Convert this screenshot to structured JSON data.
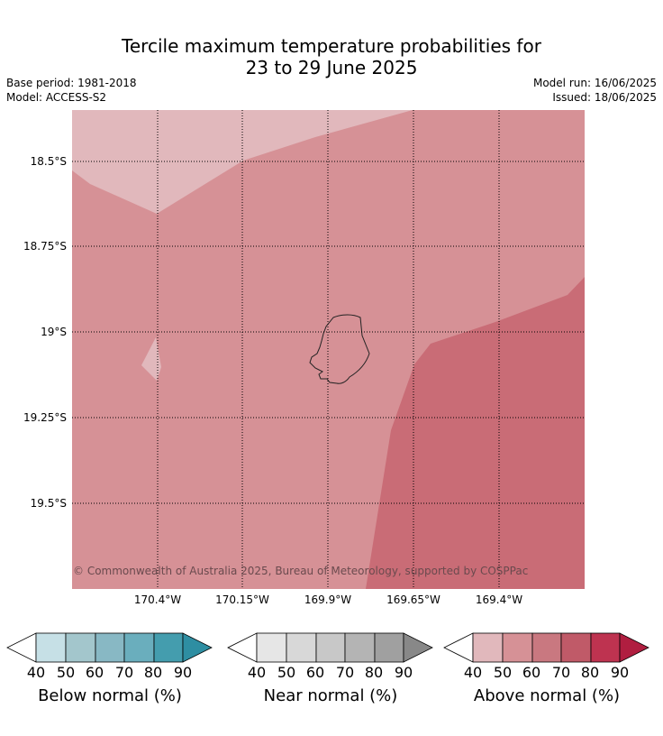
{
  "title": {
    "line1": "Tercile maximum temperature probabilities for",
    "line2": "23 to 29 June 2025"
  },
  "info": {
    "base_period": "Base period: 1981-2018",
    "model": "Model: ACCESS-S2",
    "model_run": "Model run: 16/06/2025",
    "issued": "Issued: 18/06/2025"
  },
  "map": {
    "lat_labels": [
      "18.5°S",
      "18.75°S",
      "19°S",
      "19.25°S",
      "19.5°S"
    ],
    "lon_labels": [
      "170.4°W",
      "170.15°W",
      "169.9°W",
      "169.65°W",
      "169.4°W"
    ],
    "copyright": "© Commonwealth of Australia 2025, Bureau of Meteorology, supported by COSPPac",
    "colors": {
      "above_40_50": "#e1b8bc",
      "above_50_60": "#d69196",
      "above_60_70": "#c96c76",
      "coastline": "#222222",
      "grid": "#000000"
    }
  },
  "colorbars": [
    {
      "title": "Below normal (%)",
      "ticks": [
        "40",
        "50",
        "60",
        "70",
        "80",
        "90"
      ],
      "colors": [
        "#c6e0e6",
        "#a3c6cc",
        "#88b8c4",
        "#6aaebd",
        "#449dae",
        "#2e8ea2"
      ]
    },
    {
      "title": "Near normal (%)",
      "ticks": [
        "40",
        "50",
        "60",
        "70",
        "80",
        "90"
      ],
      "colors": [
        "#e6e6e6",
        "#d8d8d8",
        "#c8c8c8",
        "#b4b4b4",
        "#a0a0a0",
        "#888888"
      ]
    },
    {
      "title": "Above normal (%)",
      "ticks": [
        "40",
        "50",
        "60",
        "70",
        "80",
        "90"
      ],
      "colors": [
        "#e1b8bc",
        "#d69196",
        "#c97880",
        "#c05a68",
        "#be3350",
        "#b01e40"
      ]
    }
  ]
}
